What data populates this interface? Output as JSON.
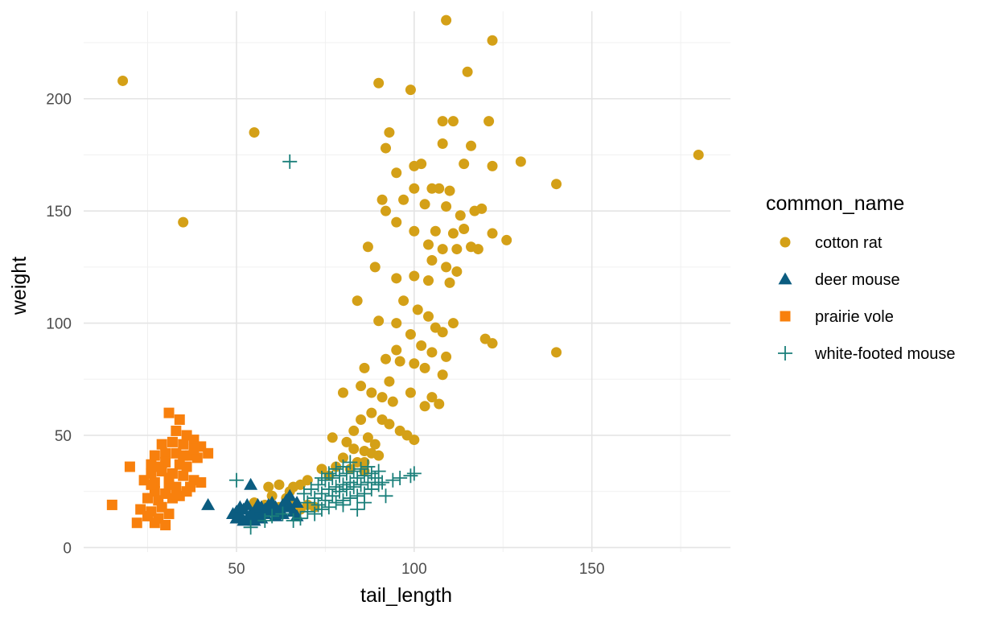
{
  "chart_data": {
    "type": "scatter",
    "title": "",
    "xlabel": "tail_length",
    "ylabel": "weight",
    "xlim": [
      7,
      189
    ],
    "ylim": [
      -2,
      239
    ],
    "x_ticks": [
      50,
      100,
      150
    ],
    "y_ticks": [
      0,
      50,
      100,
      150,
      200
    ],
    "grid": true,
    "legend": {
      "title": "common_name",
      "placement": "right"
    },
    "series": [
      {
        "name": "cotton rat",
        "color": "#D4A017",
        "marker": "circle",
        "points": [
          [
            109,
            235
          ],
          [
            122,
            226
          ],
          [
            115,
            212
          ],
          [
            18,
            208
          ],
          [
            90,
            207
          ],
          [
            99,
            204
          ],
          [
            55,
            185
          ],
          [
            93,
            185
          ],
          [
            108,
            190
          ],
          [
            111,
            190
          ],
          [
            121,
            190
          ],
          [
            180,
            175
          ],
          [
            108,
            180
          ],
          [
            116,
            179
          ],
          [
            92,
            178
          ],
          [
            95,
            167
          ],
          [
            114,
            171
          ],
          [
            122,
            170
          ],
          [
            130,
            172
          ],
          [
            100,
            170
          ],
          [
            102,
            171
          ],
          [
            140,
            162
          ],
          [
            100,
            160
          ],
          [
            105,
            160
          ],
          [
            107,
            160
          ],
          [
            110,
            159
          ],
          [
            35,
            145
          ],
          [
            91,
            155
          ],
          [
            97,
            155
          ],
          [
            103,
            153
          ],
          [
            109,
            152
          ],
          [
            113,
            148
          ],
          [
            117,
            150
          ],
          [
            119,
            151
          ],
          [
            92,
            150
          ],
          [
            95,
            145
          ],
          [
            100,
            141
          ],
          [
            106,
            141
          ],
          [
            111,
            140
          ],
          [
            114,
            142
          ],
          [
            122,
            140
          ],
          [
            126,
            137
          ],
          [
            104,
            135
          ],
          [
            108,
            133
          ],
          [
            112,
            133
          ],
          [
            116,
            134
          ],
          [
            118,
            133
          ],
          [
            87,
            134
          ],
          [
            89,
            125
          ],
          [
            105,
            128
          ],
          [
            109,
            125
          ],
          [
            112,
            123
          ],
          [
            95,
            120
          ],
          [
            100,
            121
          ],
          [
            104,
            119
          ],
          [
            110,
            118
          ],
          [
            84,
            110
          ],
          [
            97,
            110
          ],
          [
            101,
            106
          ],
          [
            104,
            103
          ],
          [
            106,
            98
          ],
          [
            108,
            96
          ],
          [
            111,
            100
          ],
          [
            120,
            93
          ],
          [
            122,
            91
          ],
          [
            140,
            87
          ],
          [
            90,
            101
          ],
          [
            95,
            100
          ],
          [
            99,
            95
          ],
          [
            102,
            90
          ],
          [
            105,
            87
          ],
          [
            109,
            85
          ],
          [
            95,
            88
          ],
          [
            92,
            84
          ],
          [
            96,
            83
          ],
          [
            100,
            82
          ],
          [
            103,
            80
          ],
          [
            108,
            77
          ],
          [
            93,
            74
          ],
          [
            86,
            80
          ],
          [
            85,
            72
          ],
          [
            88,
            69
          ],
          [
            91,
            67
          ],
          [
            94,
            65
          ],
          [
            80,
            69
          ],
          [
            99,
            69
          ],
          [
            105,
            67
          ],
          [
            107,
            64
          ],
          [
            103,
            63
          ],
          [
            88,
            60
          ],
          [
            91,
            57
          ],
          [
            93,
            55
          ],
          [
            85,
            57
          ],
          [
            83,
            52
          ],
          [
            87,
            49
          ],
          [
            89,
            46
          ],
          [
            96,
            52
          ],
          [
            98,
            50
          ],
          [
            100,
            48
          ],
          [
            77,
            49
          ],
          [
            81,
            47
          ],
          [
            83,
            44
          ],
          [
            86,
            43
          ],
          [
            88,
            42
          ],
          [
            90,
            41
          ],
          [
            86,
            38
          ],
          [
            80,
            40
          ],
          [
            84,
            38
          ],
          [
            78,
            36
          ],
          [
            82,
            35
          ],
          [
            86,
            34
          ],
          [
            74,
            35
          ],
          [
            76,
            32
          ],
          [
            70,
            30
          ],
          [
            68,
            28
          ],
          [
            66,
            27
          ],
          [
            65,
            25
          ],
          [
            62,
            28
          ],
          [
            59,
            27
          ],
          [
            60,
            23
          ],
          [
            64,
            22
          ],
          [
            55,
            20
          ],
          [
            58,
            19
          ],
          [
            62,
            18
          ],
          [
            66,
            19
          ],
          [
            70,
            19
          ],
          [
            68,
            17
          ],
          [
            72,
            18
          ]
        ]
      },
      {
        "name": "deer mouse",
        "color": "#0B5C80",
        "marker": "triangle",
        "points": [
          [
            54,
            28
          ],
          [
            42,
            19
          ],
          [
            49,
            15
          ],
          [
            50,
            16
          ],
          [
            51,
            14
          ],
          [
            52,
            17
          ],
          [
            53,
            13
          ],
          [
            55,
            16
          ],
          [
            56,
            14
          ],
          [
            57,
            18
          ],
          [
            58,
            15
          ],
          [
            59,
            19
          ],
          [
            60,
            17
          ],
          [
            61,
            14
          ],
          [
            62,
            16
          ],
          [
            63,
            19
          ],
          [
            64,
            21
          ],
          [
            65,
            18
          ],
          [
            66,
            16
          ],
          [
            67,
            14
          ],
          [
            50,
            13
          ],
          [
            52,
            12
          ],
          [
            54,
            15
          ],
          [
            56,
            19
          ],
          [
            58,
            17
          ],
          [
            60,
            20
          ],
          [
            61,
            18
          ],
          [
            63,
            15
          ],
          [
            65,
            23
          ],
          [
            67,
            20
          ],
          [
            53,
            19
          ],
          [
            51,
            18
          ],
          [
            57,
            13
          ],
          [
            55,
            12
          ],
          [
            59,
            16
          ]
        ]
      },
      {
        "name": "prairie vole",
        "color": "#F8800D",
        "marker": "square",
        "points": [
          [
            31,
            60
          ],
          [
            34,
            57
          ],
          [
            33,
            52
          ],
          [
            36,
            50
          ],
          [
            29,
            46
          ],
          [
            32,
            47
          ],
          [
            35,
            46
          ],
          [
            38,
            48
          ],
          [
            40,
            45
          ],
          [
            42,
            42
          ],
          [
            27,
            41
          ],
          [
            30,
            42
          ],
          [
            33,
            42
          ],
          [
            37,
            41
          ],
          [
            39,
            40
          ],
          [
            26,
            37
          ],
          [
            30,
            38
          ],
          [
            34,
            37
          ],
          [
            36,
            36
          ],
          [
            20,
            36
          ],
          [
            26,
            33
          ],
          [
            29,
            34
          ],
          [
            32,
            33
          ],
          [
            35,
            32
          ],
          [
            38,
            30
          ],
          [
            24,
            30
          ],
          [
            27,
            29
          ],
          [
            31,
            28
          ],
          [
            33,
            27
          ],
          [
            37,
            27
          ],
          [
            40,
            29
          ],
          [
            27,
            25
          ],
          [
            30,
            24
          ],
          [
            34,
            23
          ],
          [
            25,
            22
          ],
          [
            28,
            21
          ],
          [
            32,
            22
          ],
          [
            36,
            25
          ],
          [
            15,
            19
          ],
          [
            29,
            18
          ],
          [
            23,
            17
          ],
          [
            26,
            16
          ],
          [
            31,
            15
          ],
          [
            25,
            14
          ],
          [
            28,
            13
          ],
          [
            22,
            11
          ],
          [
            27,
            11
          ],
          [
            30,
            10
          ],
          [
            33,
            24
          ],
          [
            35,
            41
          ],
          [
            38,
            44
          ],
          [
            28,
            36
          ],
          [
            31,
            31
          ],
          [
            26,
            28
          ]
        ]
      },
      {
        "name": "white-footed mouse",
        "color": "#1A7F7A",
        "marker": "plus",
        "points": [
          [
            65,
            172
          ],
          [
            50,
            30
          ],
          [
            54,
            9
          ],
          [
            58,
            12
          ],
          [
            60,
            14
          ],
          [
            63,
            15
          ],
          [
            66,
            12
          ],
          [
            68,
            13
          ],
          [
            70,
            16
          ],
          [
            72,
            15
          ],
          [
            74,
            17
          ],
          [
            76,
            18
          ],
          [
            78,
            20
          ],
          [
            80,
            21
          ],
          [
            82,
            22
          ],
          [
            84,
            23
          ],
          [
            86,
            24
          ],
          [
            88,
            26
          ],
          [
            90,
            28
          ],
          [
            92,
            23
          ],
          [
            94,
            30
          ],
          [
            96,
            31
          ],
          [
            99,
            32
          ],
          [
            100,
            33
          ],
          [
            70,
            20
          ],
          [
            72,
            22
          ],
          [
            74,
            24
          ],
          [
            76,
            26
          ],
          [
            78,
            27
          ],
          [
            80,
            28
          ],
          [
            82,
            29
          ],
          [
            84,
            31
          ],
          [
            86,
            32
          ],
          [
            88,
            33
          ],
          [
            90,
            34
          ],
          [
            73,
            28
          ],
          [
            75,
            30
          ],
          [
            77,
            31
          ],
          [
            79,
            32
          ],
          [
            81,
            33
          ],
          [
            83,
            34
          ],
          [
            85,
            35
          ],
          [
            87,
            36
          ],
          [
            89,
            31
          ],
          [
            91,
            29
          ],
          [
            69,
            24
          ],
          [
            71,
            26
          ],
          [
            73,
            19
          ],
          [
            75,
            21
          ],
          [
            77,
            23
          ],
          [
            79,
            25
          ],
          [
            81,
            26
          ],
          [
            83,
            27
          ],
          [
            85,
            28
          ],
          [
            87,
            29
          ],
          [
            80,
            36
          ],
          [
            82,
            38
          ],
          [
            78,
            35
          ],
          [
            76,
            33
          ],
          [
            74,
            31
          ],
          [
            84,
            17
          ],
          [
            80,
            19
          ],
          [
            86,
            20
          ]
        ]
      }
    ]
  }
}
